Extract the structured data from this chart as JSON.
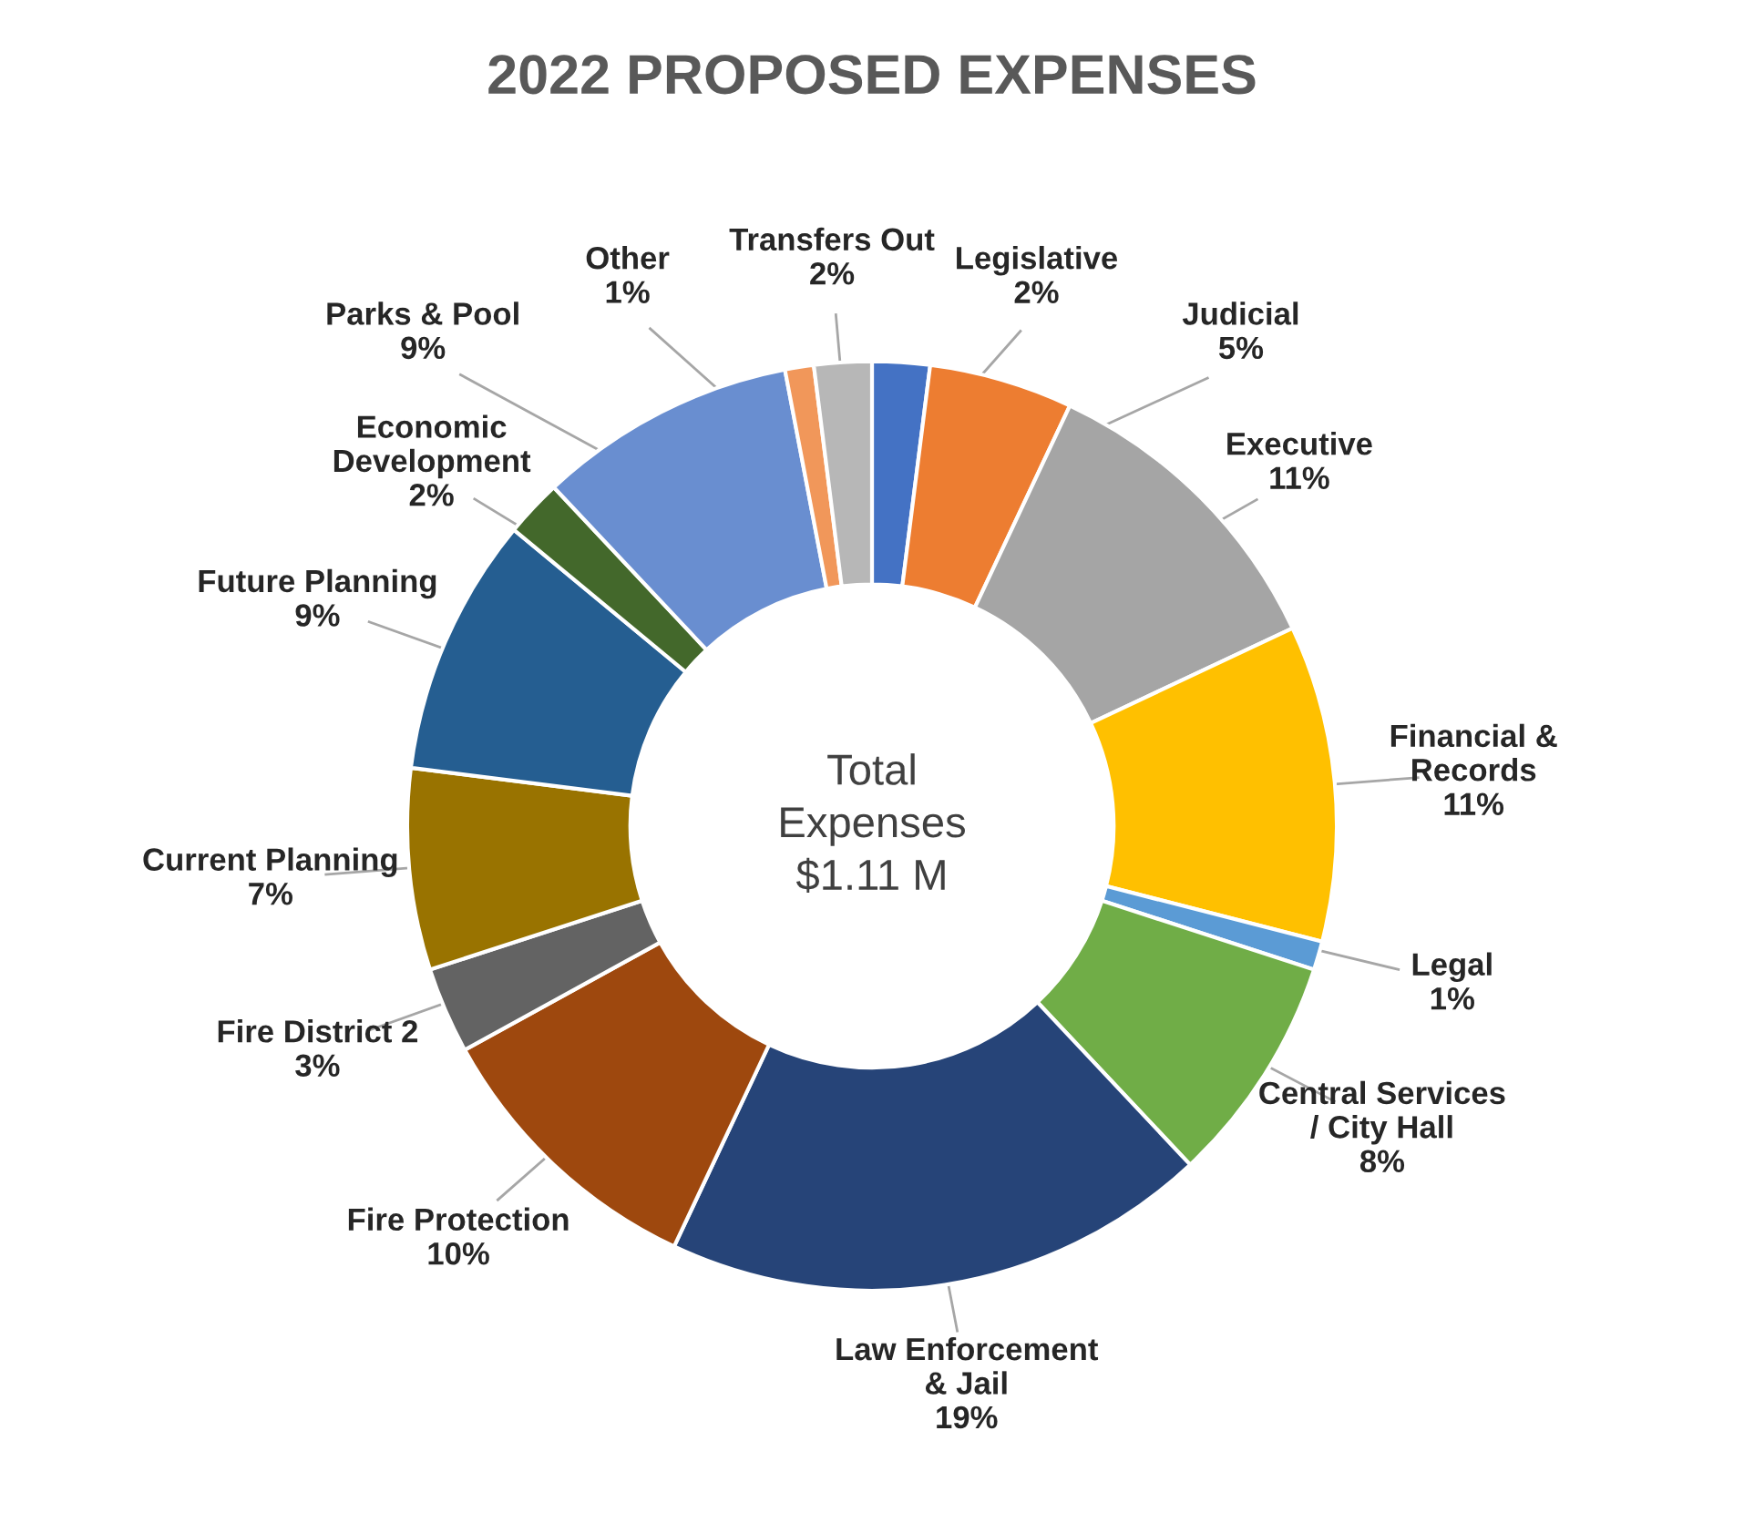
{
  "chart_data": {
    "type": "donut",
    "title": "2022 PROPOSED EXPENSES",
    "categories": [
      "Legislative",
      "Judicial",
      "Executive",
      "Financial & Records",
      "Legal",
      "Central Services / City Hall",
      "Law Enforcement & Jail",
      "Fire Protection",
      "Fire District 2",
      "Current Planning",
      "Future Planning",
      "Economic Development",
      "Parks & Pool",
      "Other",
      "Transfers Out"
    ],
    "values": [
      2,
      5,
      11,
      11,
      1,
      8,
      19,
      10,
      3,
      7,
      9,
      2,
      9,
      1,
      2
    ],
    "colors": [
      "#4472c4",
      "#ed7d31",
      "#a5a5a5",
      "#ffc000",
      "#5b9bd5",
      "#70ad47",
      "#264478",
      "#9e480e",
      "#636363",
      "#997300",
      "#255e91",
      "#43682b",
      "#698ed0",
      "#f1975a",
      "#b7b7b7"
    ],
    "value_labels": [
      "2%",
      "5%",
      "11%",
      "11%",
      "1%",
      "8%",
      "19%",
      "10%",
      "3%",
      "7%",
      "9%",
      "2%",
      "9%",
      "1%",
      "2%"
    ],
    "annotations": [
      "Total Expenses $1.11 M"
    ],
    "legend": false
  }
}
